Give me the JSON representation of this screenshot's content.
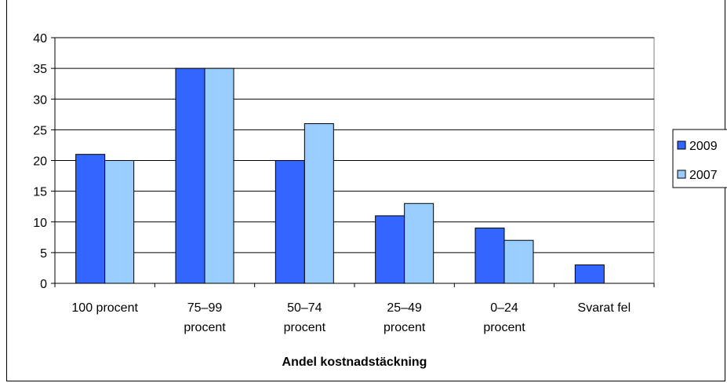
{
  "chart_data": {
    "type": "bar",
    "title": "",
    "xlabel": "Andel kostnadstäckning",
    "ylabel": "",
    "ylim": [
      0,
      40
    ],
    "yticks": [
      0,
      5,
      10,
      15,
      20,
      25,
      30,
      35,
      40
    ],
    "grid": true,
    "legend_position": "right",
    "categories": [
      [
        "100 procent"
      ],
      [
        "75–99",
        "procent"
      ],
      [
        "50–74",
        "procent"
      ],
      [
        "25–49",
        "procent"
      ],
      [
        "0–24",
        "procent"
      ],
      [
        "Svarat fel"
      ]
    ],
    "series": [
      {
        "name": "2009",
        "color": "#3366ff",
        "values": [
          21,
          35,
          20,
          11,
          9,
          3
        ]
      },
      {
        "name": "2007",
        "color": "#99ccff",
        "values": [
          20,
          35,
          26,
          13,
          7,
          0
        ]
      }
    ]
  }
}
